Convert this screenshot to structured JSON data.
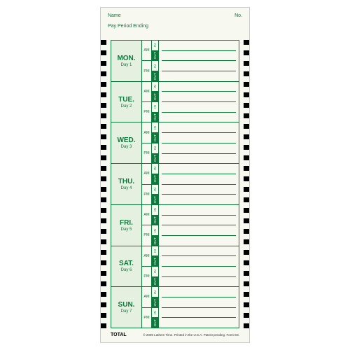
{
  "header": {
    "name_label": "Name",
    "no_label": "No.",
    "period_label": "Pay Period Ending"
  },
  "colors": {
    "green": "#0a7a3a",
    "light_green_bg": "#e6f0e0",
    "card_bg": "#f7f8f0",
    "tick": "#000000"
  },
  "ampm": {
    "am": "AM",
    "pm": "PM"
  },
  "inout": {
    "in": "IN",
    "out": "OUT"
  },
  "days": [
    {
      "abbr": "MON.",
      "num": "Day 1"
    },
    {
      "abbr": "TUE.",
      "num": "Day 2"
    },
    {
      "abbr": "WED.",
      "num": "Day 3"
    },
    {
      "abbr": "THU.",
      "num": "Day 4"
    },
    {
      "abbr": "FRI.",
      "num": "Day 5"
    },
    {
      "abbr": "SAT.",
      "num": "Day 6"
    },
    {
      "abbr": "SUN.",
      "num": "Day 7"
    }
  ],
  "footer": {
    "total": "TOTAL",
    "fine_print": "© 2009 Lathem Time.  Printed in the U.S.A.  Patent pending.   Form E8."
  },
  "tick_count": 28
}
